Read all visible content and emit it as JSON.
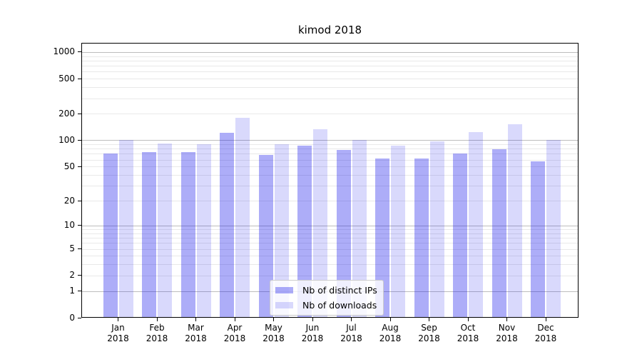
{
  "title": "kimod 2018",
  "legend": {
    "position": "lower center",
    "items": [
      {
        "label": "Nb of distinct IPs"
      },
      {
        "label": "Nb of downloads"
      }
    ]
  },
  "colors": {
    "bar_distinct_ips": "rgba(20,20,235,0.35)",
    "bar_downloads": "rgba(20,20,235,0.16)",
    "grid_major": "#bdbdbd",
    "grid_minor": "#e9e9e9",
    "axis": "#000000"
  },
  "chart_data": {
    "type": "bar",
    "title": "kimod 2018",
    "y_scale": "log1p",
    "categories": [
      "Jan 2018",
      "Feb 2018",
      "Mar 2018",
      "Apr 2018",
      "May 2018",
      "Jun 2018",
      "Jul 2018",
      "Aug 2018",
      "Sep 2018",
      "Oct 2018",
      "Nov 2018",
      "Dec 2018"
    ],
    "x_tick_months": [
      "Jan",
      "Feb",
      "Mar",
      "Apr",
      "May",
      "Jun",
      "Jul",
      "Aug",
      "Sep",
      "Oct",
      "Nov",
      "Dec"
    ],
    "x_tick_year": "2018",
    "series": [
      {
        "name": "Nb of distinct IPs",
        "values": [
          71,
          73,
          73,
          121,
          68,
          86,
          77,
          62,
          62,
          71,
          79,
          57
        ]
      },
      {
        "name": "Nb of downloads",
        "values": [
          100,
          92,
          90,
          180,
          90,
          133,
          100,
          87,
          98,
          125,
          153,
          100
        ]
      }
    ],
    "y_ticks": [
      0,
      1,
      2,
      5,
      10,
      20,
      50,
      100,
      200,
      500,
      1000
    ],
    "ylim": [
      0,
      1270
    ],
    "grid": {
      "major_at": [
        1,
        10,
        100,
        1000
      ],
      "minor_multiples": [
        2,
        3,
        4,
        5,
        6,
        7,
        8,
        9
      ],
      "shown": true
    },
    "legend_position": "lower center",
    "xlabel": "",
    "ylabel": ""
  }
}
